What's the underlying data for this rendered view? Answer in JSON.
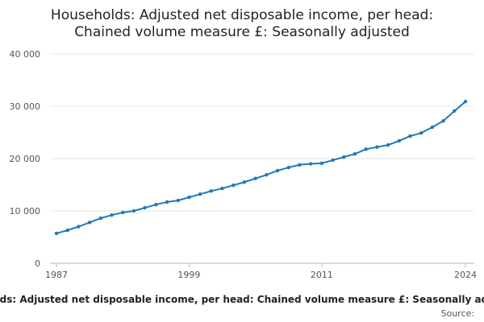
{
  "chart_data": {
    "type": "line",
    "title": [
      "Households: Adjusted net disposable income, per head:",
      "Chained volume measure £: Seasonally adjusted"
    ],
    "source": "Source:",
    "x": [
      1987,
      1988,
      1989,
      1990,
      1991,
      1992,
      1993,
      1994,
      1995,
      1996,
      1997,
      1998,
      1999,
      2000,
      2001,
      2002,
      2003,
      2004,
      2005,
      2006,
      2007,
      2008,
      2009,
      2010,
      2011,
      2012,
      2013,
      2014,
      2015,
      2016,
      2017,
      2018,
      2019,
      2020,
      2021,
      2022,
      2023,
      2024
    ],
    "values": [
      5700,
      6300,
      7000,
      7800,
      8600,
      9200,
      9700,
      10000,
      10600,
      11200,
      11700,
      12000,
      12600,
      13200,
      13800,
      14300,
      14900,
      15500,
      16200,
      16900,
      17700,
      18300,
      18800,
      19000,
      19100,
      19700,
      20300,
      20900,
      21800,
      22200,
      22600,
      23400,
      24300,
      24900,
      26000,
      27200,
      29100,
      30900
    ],
    "color": "#1f7ab8",
    "xlim": [
      1987,
      2024
    ],
    "xticks": [
      1987,
      1999,
      2011,
      2024
    ],
    "ylim": [
      0,
      40000
    ],
    "yticks": [
      0,
      {
        "value": 10000,
        "label": "10 000"
      },
      {
        "value": 20000,
        "label": "20 000"
      },
      {
        "value": 30000,
        "label": "30 000"
      },
      {
        "value": 40000,
        "label": "40 000"
      }
    ],
    "grid": true
  }
}
